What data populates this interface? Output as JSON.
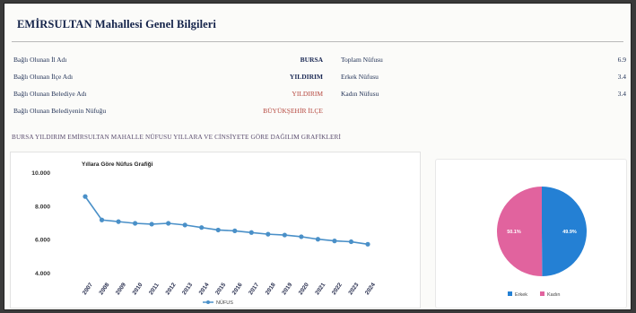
{
  "header": {
    "title": "EMİRSULTAN Mahallesi Genel Bilgileri"
  },
  "info": [
    {
      "label": "Bağlı Olunan İl Adı",
      "value": "BURSA",
      "tone": "dark"
    },
    {
      "label": "Bağlı Olunan İlçe Adı",
      "value": "YILDIRIM",
      "tone": "dark"
    },
    {
      "label": "Bağlı Olunan Belediye Adı",
      "value": "YILDIRIM",
      "tone": "red"
    },
    {
      "label": "Bağlı Olunan Belediyenin Nüfuğu",
      "value": "BÜYÜKŞEHİR İLÇE",
      "tone": "red"
    }
  ],
  "stats": [
    {
      "label": "Toplam Nüfusu",
      "value": "6.9"
    },
    {
      "label": "Erkek Nüfusu",
      "value": "3.4"
    },
    {
      "label": "Kadın Nüfusu",
      "value": "3.4"
    }
  ],
  "section": {
    "heading": "BURSA YILDIRIM EMİRSULTAN MAHALLE NÜFUSU YILLARA VE CİNSİYETE GÖRE DAĞILIM GRAFİKLERİ"
  },
  "chart_data": [
    {
      "type": "line",
      "title": "Yıllara Göre Nüfus Grafiği",
      "x": [
        "2007",
        "2008",
        "2009",
        "2010",
        "2011",
        "2012",
        "2013",
        "2014",
        "2015",
        "2016",
        "2017",
        "2018",
        "2019",
        "2020",
        "2021",
        "2022",
        "2023",
        "2024"
      ],
      "series": [
        {
          "name": "NÜFUS",
          "values": [
            8600,
            7200,
            7100,
            7000,
            6950,
            7000,
            6900,
            6750,
            6600,
            6550,
            6450,
            6350,
            6300,
            6200,
            6050,
            5950,
            5900,
            5750
          ]
        }
      ],
      "ytick_labels": [
        "10.000",
        "8.000",
        "6.000",
        "4.000"
      ],
      "ylim": [
        4000,
        10000
      ],
      "color": "#4a90c8",
      "grid": false,
      "legend": "bottom"
    },
    {
      "type": "pie",
      "series": [
        {
          "name": "Erkek",
          "value": 49.9,
          "label": "49.9%",
          "color": "#2480d4"
        },
        {
          "name": "Kadın",
          "value": 50.1,
          "label": "50.1%",
          "color": "#e1639e"
        }
      ],
      "legend": "bottom"
    }
  ]
}
